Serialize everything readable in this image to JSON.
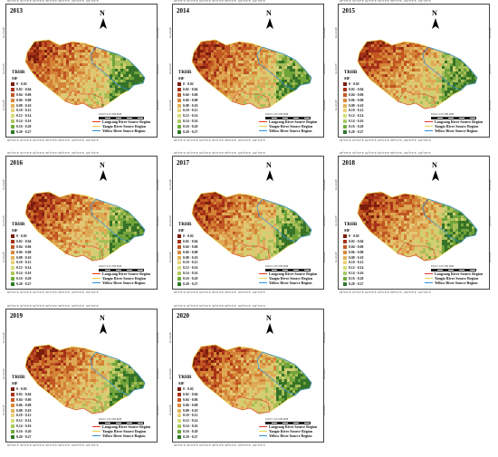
{
  "panels": [
    {
      "year": "2013"
    },
    {
      "year": "2014"
    },
    {
      "year": "2015"
    },
    {
      "year": "2016"
    },
    {
      "year": "2017"
    },
    {
      "year": "2018"
    },
    {
      "year": "2019"
    },
    {
      "year": "2020"
    }
  ],
  "map": {
    "north_label": "N",
    "region_label": "TRHR",
    "variable_label": "SIF",
    "scale_text": "0   62.5 125        250 KM",
    "lon_ticks": "90°0'0\"E    92°0'0\"E    94°0'0\"E    96°0'0\"E    98°0'0\"E    100°0'0\"E  102°0'0\"E",
    "lat_ticks": [
      "36°0'0\"N",
      "34°0'0\"N",
      "32°0'0\"N"
    ]
  },
  "legend": [
    {
      "label": "0 - 0.02",
      "color": "#7a1c0c"
    },
    {
      "label": "0.02 - 0.04",
      "color": "#a8321a"
    },
    {
      "label": "0.04 - 0.06",
      "color": "#c65a24"
    },
    {
      "label": "0.06 - 0.08",
      "color": "#d98a3a"
    },
    {
      "label": "0.08 - 0.10",
      "color": "#e5b35a"
    },
    {
      "label": "0.10 - 0.12",
      "color": "#e9d27c"
    },
    {
      "label": "0.12 - 0.14",
      "color": "#d6dd7a"
    },
    {
      "label": "0.14 - 0.16",
      "color": "#aacb5e"
    },
    {
      "label": "0.16 - 0.20",
      "color": "#6fae3f"
    },
    {
      "label": "0.20 - 0.27",
      "color": "#2f7a2a"
    }
  ],
  "regions": [
    {
      "label": "Langcang River Source Region",
      "color": "#e0342b"
    },
    {
      "label": "Yangtz River Source Region",
      "color": "#e8d34a"
    },
    {
      "label": "Yellow River Source Region",
      "color": "#2f8fd8"
    }
  ]
}
